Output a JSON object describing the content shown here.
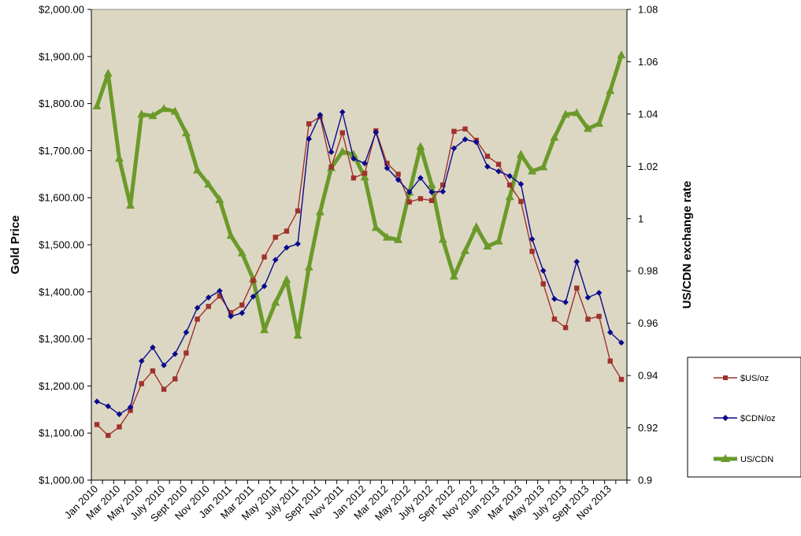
{
  "chart_data": {
    "type": "line",
    "title": "",
    "ylabel": "Gold Price",
    "y2label": "US/CDN exchange rate",
    "ylim": [
      1000,
      2000
    ],
    "y2lim": [
      0.9,
      1.08
    ],
    "y_ticks": [
      "$1,000.00",
      "$1,100.00",
      "$1,200.00",
      "$1,300.00",
      "$1,400.00",
      "$1,500.00",
      "$1,600.00",
      "$1,700.00",
      "$1,800.00",
      "$1,900.00",
      "$2,000.00"
    ],
    "y2_ticks": [
      "0.9",
      "0.92",
      "0.94",
      "0.96",
      "0.98",
      "1",
      "1.02",
      "1.04",
      "1.06",
      "1.08"
    ],
    "x_tick_labels": [
      "Jan 2010",
      "Mar 2010",
      "May 2010",
      "July 2010",
      "Sept 2010",
      "Nov 2010",
      "Jan 2011",
      "Mar 2011",
      "May 2011",
      "July 2011",
      "Sept 2011",
      "Nov 2011",
      "Jan 2012",
      "Mar 2012",
      "May 2012",
      "July 2012",
      "Sept 2012",
      "Nov 2012",
      "Jan 2013",
      "Mar 2013",
      "May 2013",
      "July 2013",
      "Sept 2013",
      "Nov 2013"
    ],
    "legend_position": "right",
    "plot_background": "#dcd7c3",
    "series": [
      {
        "name": "$US/oz",
        "axis": "left",
        "color": "#a0322d",
        "marker": "square",
        "values": [
          1118,
          1095,
          1113,
          1148,
          1205,
          1232,
          1193,
          1215,
          1270,
          1342,
          1369,
          1391,
          1356,
          1372,
          1424,
          1474,
          1516,
          1529,
          1572,
          1757,
          1772,
          1665,
          1738,
          1642,
          1652,
          1742,
          1673,
          1650,
          1591,
          1598,
          1594,
          1627,
          1741,
          1746,
          1722,
          1688,
          1671,
          1627,
          1592,
          1486,
          1417,
          1342,
          1324,
          1408,
          1342,
          1348,
          1253,
          1214
        ]
      },
      {
        "name": "$CDN/oz",
        "axis": "left",
        "color": "#0a0a8c",
        "marker": "diamond",
        "values": [
          1167,
          1157,
          1140,
          1155,
          1253,
          1282,
          1244,
          1268,
          1314,
          1366,
          1388,
          1402,
          1348,
          1355,
          1390,
          1412,
          1468,
          1494,
          1502,
          1725,
          1776,
          1697,
          1782,
          1683,
          1673,
          1739,
          1663,
          1638,
          1612,
          1642,
          1612,
          1613,
          1705,
          1724,
          1718,
          1666,
          1656,
          1646,
          1629,
          1512,
          1445,
          1385,
          1378,
          1464,
          1388,
          1398,
          1314,
          1292
        ]
      },
      {
        "name": "US/CDN",
        "axis": "right",
        "color": "#6b9a2a",
        "marker": "triangle",
        "values": [
          1.043,
          1.0555,
          1.023,
          1.005,
          1.0399,
          1.0393,
          1.042,
          1.041,
          1.0327,
          1.0185,
          1.0131,
          1.0072,
          0.9935,
          0.9868,
          0.9769,
          0.9574,
          0.9679,
          0.9766,
          0.9553,
          0.9814,
          1.0025,
          1.0194,
          1.0256,
          1.0245,
          1.0158,
          0.9965,
          0.9928,
          0.9919,
          1.01,
          1.0275,
          1.0129,
          0.992,
          0.9779,
          0.9877,
          0.9968,
          0.9894,
          0.9913,
          1.0083,
          1.0245,
          1.0181,
          1.0197,
          1.031,
          1.0398,
          1.0404,
          1.0344,
          1.0363,
          1.0489,
          1.0625
        ]
      }
    ]
  }
}
